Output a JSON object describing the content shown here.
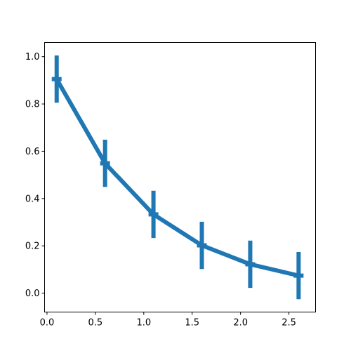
{
  "chart_data": {
    "type": "line",
    "title": "",
    "xlabel": "",
    "ylabel": "",
    "xlim": [
      -0.025,
      2.775
    ],
    "ylim": [
      -0.08,
      1.06
    ],
    "x_ticks": [
      0.0,
      0.5,
      1.0,
      1.5,
      2.0,
      2.5
    ],
    "x_tick_labels": [
      "0.0",
      "0.5",
      "1.0",
      "1.5",
      "2.0",
      "2.5"
    ],
    "y_ticks": [
      0.0,
      0.2,
      0.4,
      0.6,
      0.8,
      1.0
    ],
    "y_tick_labels": [
      "0.0",
      "0.2",
      "0.4",
      "0.6",
      "0.8",
      "1.0"
    ],
    "grid": false,
    "series": [
      {
        "color": "#1f77b4",
        "x": [
          0.1,
          0.6,
          1.1,
          1.6,
          2.1,
          2.6
        ],
        "y": [
          0.905,
          0.549,
          0.333,
          0.202,
          0.122,
          0.074
        ],
        "yerr": [
          0.1,
          0.1,
          0.1,
          0.1,
          0.1,
          0.1
        ]
      }
    ]
  }
}
